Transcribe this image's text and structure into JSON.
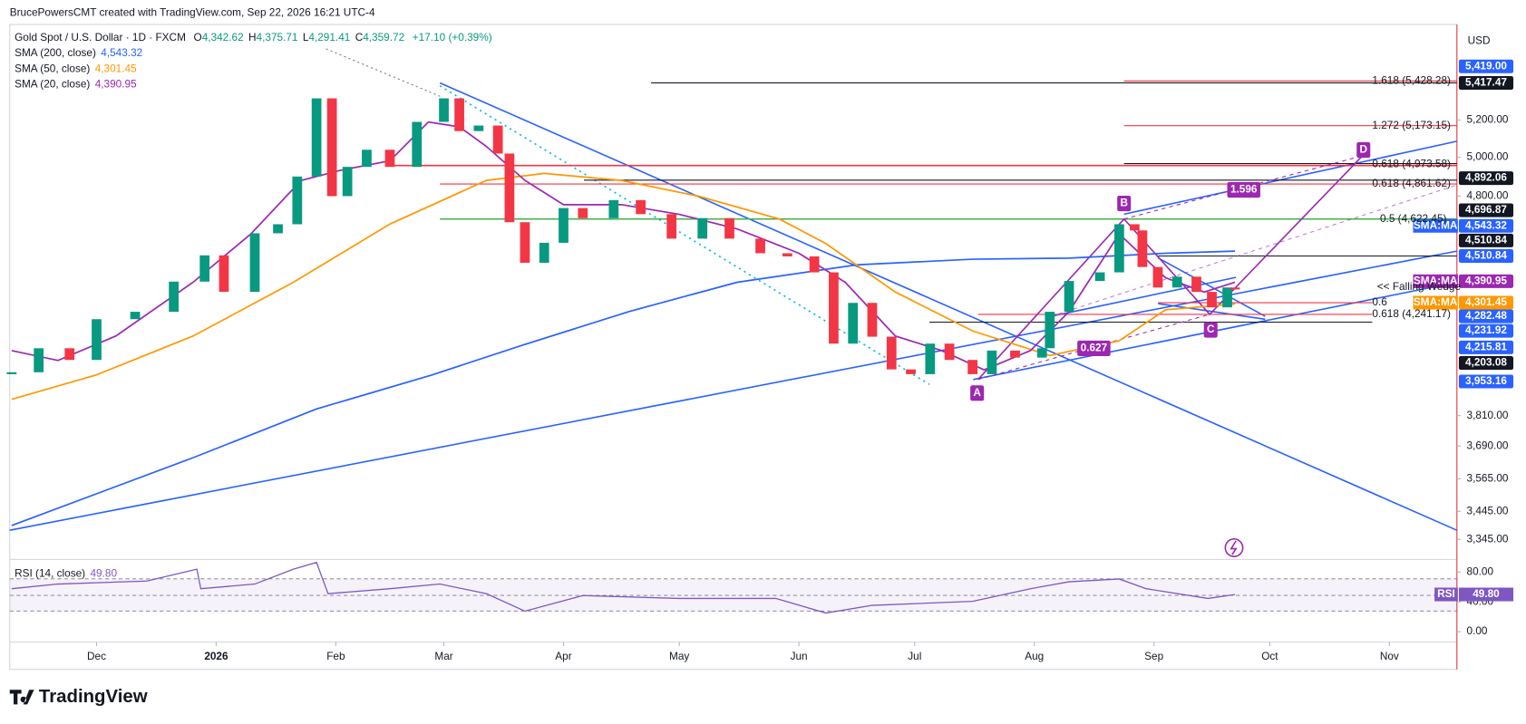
{
  "header": "BrucePowersCMT created with TradingView.com, Sep 22, 2026 16:21 UTC-4",
  "footer": "TradingView",
  "chart_data": {
    "type": "line",
    "title": "Gold Spot / U.S. Dollar · 1D · FXCM",
    "ohlc": [
      {
        "key": "O",
        "value": "4,342.62"
      },
      {
        "key": "H",
        "value": "4,375.71"
      },
      {
        "key": "L",
        "value": "4,291.41"
      },
      {
        "key": "C",
        "value": "4,359.72"
      }
    ],
    "change": "+17.10 (+0.39%)",
    "y_axis_label": "USD",
    "log_scale": true,
    "xlim": [
      -22.5,
      352.5
    ],
    "xticks": [
      {
        "value": 0,
        "label": "Dec"
      },
      {
        "value": 31,
        "label": "2026"
      },
      {
        "value": 62,
        "label": "Feb"
      },
      {
        "value": 90,
        "label": "Mar"
      },
      {
        "value": 121,
        "label": "Apr"
      },
      {
        "value": 151,
        "label": "May"
      },
      {
        "value": 182,
        "label": "Jun"
      },
      {
        "value": 212,
        "label": "Jul"
      },
      {
        "value": 243,
        "label": "Aug"
      },
      {
        "value": 274,
        "label": "Sep"
      },
      {
        "value": 304,
        "label": "Oct"
      },
      {
        "value": 335,
        "label": "Nov"
      }
    ],
    "ylim": [
      3275,
      5750
    ],
    "yticks": [
      {
        "value": 5200,
        "label": "5,200.00"
      },
      {
        "value": 5000,
        "label": "5,000.00"
      },
      {
        "value": 4800,
        "label": "4,800.00"
      },
      {
        "value": 3810,
        "label": "3,810.00"
      },
      {
        "value": 3690,
        "label": "3,690.00"
      },
      {
        "value": 3565,
        "label": "3,565.00"
      },
      {
        "value": 3445,
        "label": "3,445.00"
      },
      {
        "value": 3345,
        "label": "3,345.00"
      }
    ],
    "price": {
      "up_color": "#089981",
      "down_color": "#f23645",
      "x": [
        -22,
        -15,
        -7,
        0,
        10,
        20,
        28,
        33,
        41,
        47,
        52,
        57,
        61,
        65,
        70,
        76,
        83,
        90,
        94,
        99,
        104,
        107,
        111,
        116,
        121,
        126,
        134,
        141,
        149,
        157,
        164,
        172,
        179,
        186,
        191,
        196,
        201,
        206,
        211,
        216,
        221,
        227,
        232,
        238,
        245,
        247,
        252,
        260,
        265,
        269,
        271,
        275,
        280,
        285,
        289,
        293,
        295
      ],
      "values": [
        3988,
        4090,
        4040,
        4217,
        4250,
        4387,
        4510,
        4340,
        4616,
        4660,
        4900,
        5320,
        4800,
        4950,
        5040,
        4950,
        5190,
        5320,
        5140,
        5170,
        5020,
        4670,
        4475,
        4570,
        4740,
        4690,
        4780,
        4710,
        4590,
        4690,
        4590,
        4520,
        4505,
        4430,
        4110,
        4290,
        4140,
        4000,
        3980,
        4110,
        4040,
        3980,
        4080,
        4050,
        4090,
        4250,
        4390,
        4430,
        4660,
        4630,
        4455,
        4360,
        4410,
        4340,
        4270,
        4360,
        4359.72
      ]
    },
    "series": [
      {
        "name": "SMA (200, close)",
        "legend_value": "4,543.32",
        "color": "#2962ff",
        "x": [
          -22,
          25,
          57,
          87,
          110,
          138,
          166,
          197,
          227,
          252,
          277,
          295
        ],
        "values": [
          3394,
          3645,
          3837,
          3977,
          4101,
          4251,
          4384,
          4465,
          4492,
          4497,
          4520,
          4530
        ]
      },
      {
        "name": "SMA (50, close)",
        "legend_value": "4,301.45",
        "color": "#ff9800",
        "x": [
          -22,
          0,
          25,
          51,
          76,
          101,
          116,
          136,
          156,
          177,
          189,
          207,
          227,
          247,
          265,
          277,
          295
        ],
        "values": [
          3876,
          3977,
          4143,
          4384,
          4661,
          4880,
          4916,
          4880,
          4800,
          4685,
          4566,
          4339,
          4165,
          4059,
          4122,
          4259,
          4285
        ]
      },
      {
        "name": "SMA (20, close)",
        "legend_value": "4,390.95",
        "color": "#9c27b0",
        "x": [
          -22,
          -10,
          5,
          25,
          40,
          53,
          63,
          76,
          86,
          94,
          101,
          111,
          121,
          136,
          151,
          166,
          182,
          194,
          207,
          219,
          230,
          242,
          252,
          265,
          277,
          287,
          295
        ],
        "values": [
          4080,
          4038,
          4143,
          4384,
          4613,
          4880,
          4931,
          4982,
          5189,
          5163,
          5058,
          4880,
          4757,
          4757,
          4709,
          4637,
          4520,
          4384,
          4143,
          4080,
          3998,
          4080,
          4251,
          4613,
          4405,
          4339,
          4384
        ]
      }
    ],
    "price_tags": [
      {
        "label": "5,419.00",
        "color": "#2962ff"
      },
      {
        "label": "5,417.47",
        "color": "#131722"
      },
      {
        "label": "4,892.06",
        "color": "#131722"
      },
      {
        "label": "4,696.87",
        "color": "#131722"
      },
      {
        "label": "4,543.32",
        "color": "#2962ff"
      },
      {
        "label": "4,510.84",
        "color": "#131722"
      },
      {
        "label": "4,510.84",
        "color": "#2962ff"
      },
      {
        "label": "4,390.95",
        "color": "#9c27b0"
      },
      {
        "label": "4,301.45",
        "color": "#ff9800"
      },
      {
        "label": "4,282.48",
        "color": "#2962ff"
      },
      {
        "label": "4,231.92",
        "color": "#2962ff"
      },
      {
        "label": "4,215.81",
        "color": "#2962ff"
      },
      {
        "label": "4,203.08",
        "color": "#131722"
      },
      {
        "label": "3,953.16",
        "color": "#2962ff"
      }
    ],
    "ma_tags": [
      {
        "label": "SMA:MA",
        "color": "#2962ff"
      },
      {
        "label": "SMA:MA",
        "color": "#9c27b0"
      },
      {
        "label": "SMA:MA",
        "color": "#ff9800"
      }
    ],
    "annotations": [
      {
        "text": "1.618 (5,428.28)",
        "color": "#f23645"
      },
      {
        "text": "1.272 (5,173.15)",
        "color": "#f23645"
      },
      {
        "text": "0.618 (4,973.58)",
        "color": "#f23645"
      },
      {
        "text": "0.618 (4,861.62)",
        "color": "#f23645"
      },
      {
        "text": "0.5 (4,622.45)",
        "color": "#4caf50"
      },
      {
        "text": "0.618 (4,241.17)",
        "color": "#f23645"
      },
      {
        "text": "0.6",
        "color": "#f23645"
      },
      {
        "text": "<< Falling Wedge",
        "color": "#2962ff"
      }
    ],
    "badges": [
      {
        "text": "A"
      },
      {
        "text": "B"
      },
      {
        "text": "C"
      },
      {
        "text": "D"
      },
      {
        "text": "1.596"
      },
      {
        "text": "0.627"
      }
    ],
    "rsi": {
      "title": "RSI (14, close)",
      "value_label": "49.80",
      "tag": "RSI",
      "color": "#7e57c2",
      "ylim": [
        -14,
        97
      ],
      "yticks": [
        {
          "value": 80,
          "label": "80.00"
        },
        {
          "value": 40,
          "label": "40.00"
        },
        {
          "value": 0,
          "label": "0.00"
        }
      ],
      "x": [
        -22,
        -10,
        13,
        26,
        27,
        41,
        51,
        57,
        60,
        76,
        89,
        101,
        111,
        126,
        151,
        176,
        189,
        201,
        227,
        242,
        252,
        265,
        272,
        288,
        295
      ],
      "values": [
        57.7,
        64,
        68,
        84,
        57.7,
        64,
        84,
        93,
        51,
        57.7,
        64,
        51,
        27.5,
        48.5,
        44.6,
        44.6,
        25,
        35.4,
        40.7,
        57.7,
        66.9,
        70.8,
        57.7,
        44.6,
        49.8
      ]
    }
  }
}
